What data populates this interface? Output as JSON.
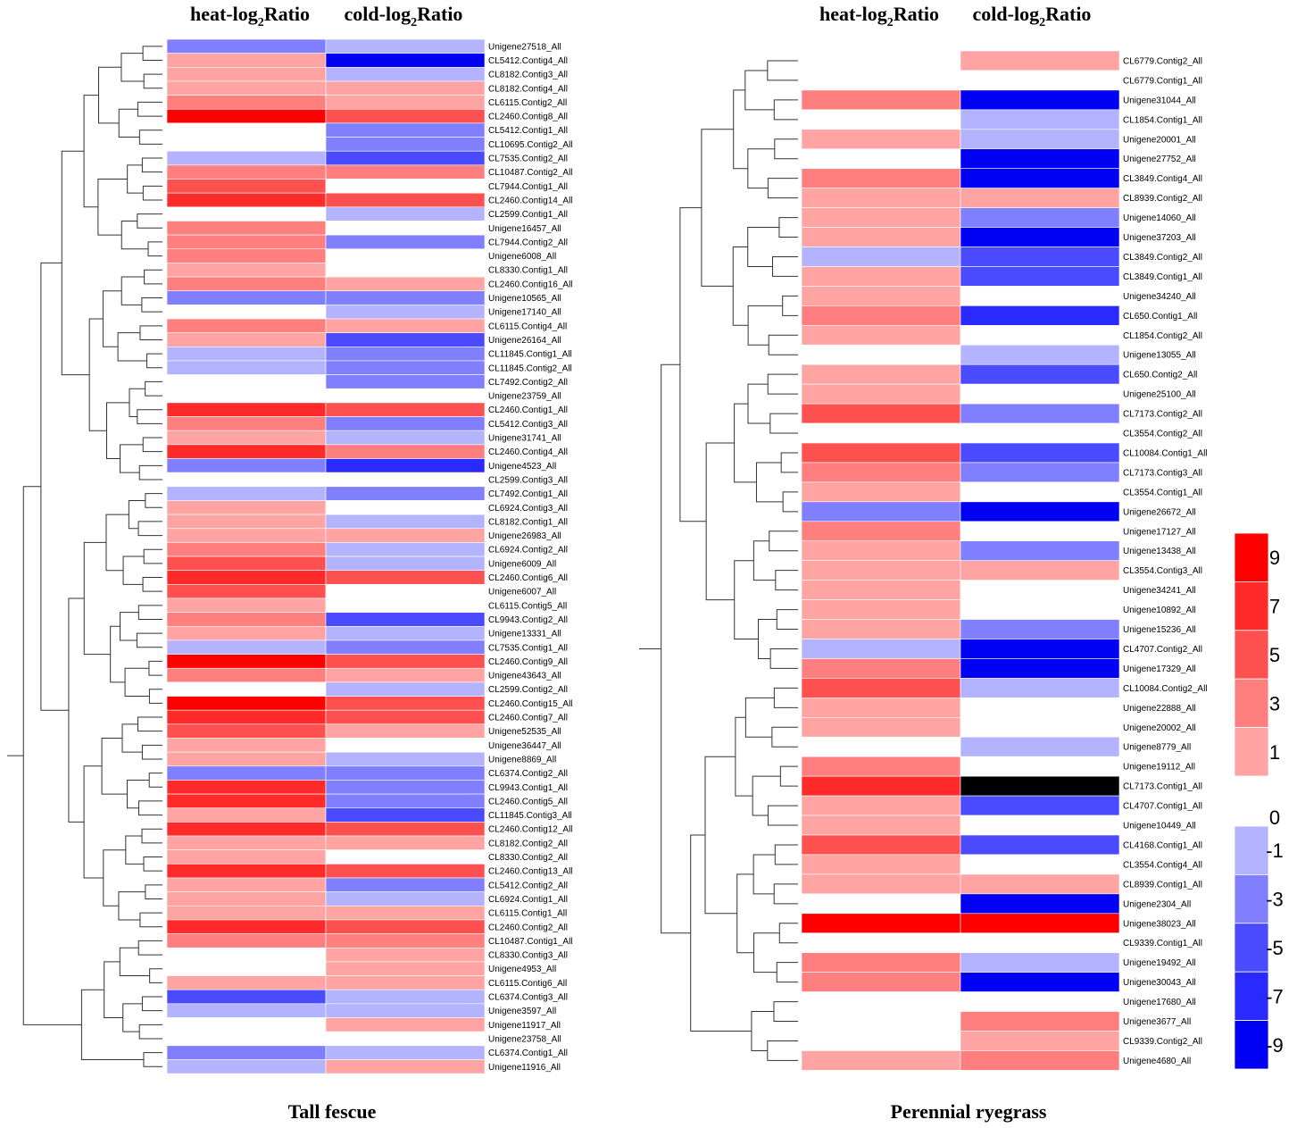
{
  "panels": [
    {
      "title": "Tall fescue",
      "col_headers": [
        {
          "main": "heat-log",
          "sub": "2",
          "tail": "Ratio"
        },
        {
          "main": "cold-log",
          "sub": "2",
          "tail": "Ratio"
        }
      ],
      "rows": [
        {
          "gene": "Unigene27518_All",
          "heat": -3,
          "cold": -1
        },
        {
          "gene": "CL5412.Contig4_All",
          "heat": 1,
          "cold": -9
        },
        {
          "gene": "CL8182.Contig3_All",
          "heat": 1,
          "cold": -1
        },
        {
          "gene": "CL8182.Contig4_All",
          "heat": 1,
          "cold": 1
        },
        {
          "gene": "CL6115.Contig2_All",
          "heat": 3,
          "cold": 1
        },
        {
          "gene": "CL2460.Contig8_All",
          "heat": 9,
          "cold": 5
        },
        {
          "gene": "CL5412.Contig1_All",
          "heat": null,
          "cold": -3
        },
        {
          "gene": "CL10695.Contig2_All",
          "heat": null,
          "cold": -3
        },
        {
          "gene": "CL7535.Contig2_All",
          "heat": -1,
          "cold": -5
        },
        {
          "gene": "CL10487.Contig2_All",
          "heat": 3,
          "cold": 3
        },
        {
          "gene": "CL7944.Contig1_All",
          "heat": 5,
          "cold": null
        },
        {
          "gene": "CL2460.Contig14_All",
          "heat": 7,
          "cold": 5
        },
        {
          "gene": "CL2599.Contig1_All",
          "heat": null,
          "cold": -1
        },
        {
          "gene": "Unigene16457_All",
          "heat": 3,
          "cold": null
        },
        {
          "gene": "CL7944.Contig2_All",
          "heat": 3,
          "cold": -3
        },
        {
          "gene": "Unigene6008_All",
          "heat": 3,
          "cold": null
        },
        {
          "gene": "CL8330.Contig1_All",
          "heat": 1,
          "cold": null
        },
        {
          "gene": "CL2460.Contig16_All",
          "heat": 3,
          "cold": 1
        },
        {
          "gene": "Unigene10565_All",
          "heat": -3,
          "cold": -3
        },
        {
          "gene": "Unigene17140_All",
          "heat": null,
          "cold": -1
        },
        {
          "gene": "CL6115.Contig4_All",
          "heat": 3,
          "cold": 1
        },
        {
          "gene": "Unigene26164_All",
          "heat": 1,
          "cold": -5
        },
        {
          "gene": "CL11845.Contig1_All",
          "heat": -1,
          "cold": -3
        },
        {
          "gene": "CL11845.Contig2_All",
          "heat": -1,
          "cold": -3
        },
        {
          "gene": "CL7492.Contig2_All",
          "heat": null,
          "cold": -3
        },
        {
          "gene": "Unigene23759_All",
          "heat": null,
          "cold": null
        },
        {
          "gene": "CL2460.Contig1_All",
          "heat": 7,
          "cold": 5
        },
        {
          "gene": "CL5412.Contig3_All",
          "heat": 3,
          "cold": -3
        },
        {
          "gene": "Unigene31741_All",
          "heat": 1,
          "cold": -1
        },
        {
          "gene": "CL2460.Contig4_All",
          "heat": 7,
          "cold": 3
        },
        {
          "gene": "Unigene4523_All",
          "heat": -3,
          "cold": -7
        },
        {
          "gene": "CL2599.Contig3_All",
          "heat": null,
          "cold": null
        },
        {
          "gene": "CL7492.Contig1_All",
          "heat": -1,
          "cold": -3
        },
        {
          "gene": "CL6924.Contig3_All",
          "heat": 1,
          "cold": null
        },
        {
          "gene": "CL8182.Contig1_All",
          "heat": 1,
          "cold": -1
        },
        {
          "gene": "Unigene26983_All",
          "heat": 1,
          "cold": 1
        },
        {
          "gene": "CL6924.Contig2_All",
          "heat": 3,
          "cold": -1
        },
        {
          "gene": "Unigene6009_All",
          "heat": 5,
          "cold": -1
        },
        {
          "gene": "CL2460.Contig6_All",
          "heat": 7,
          "cold": 5
        },
        {
          "gene": "Unigene6007_All",
          "heat": 5,
          "cold": null
        },
        {
          "gene": "CL6115.Contig5_All",
          "heat": 1,
          "cold": null
        },
        {
          "gene": "CL9943.Contig2_All",
          "heat": 3,
          "cold": -5
        },
        {
          "gene": "Unigene13331_All",
          "heat": 1,
          "cold": -1
        },
        {
          "gene": "CL7535.Contig1_All",
          "heat": -1,
          "cold": -3
        },
        {
          "gene": "CL2460.Contig9_All",
          "heat": 9,
          "cold": 5
        },
        {
          "gene": "Unigene43643_All",
          "heat": 3,
          "cold": 1
        },
        {
          "gene": "CL2599.Contig2_All",
          "heat": null,
          "cold": -1
        },
        {
          "gene": "CL2460.Contig15_All",
          "heat": 9,
          "cold": 5
        },
        {
          "gene": "CL2460.Contig7_All",
          "heat": 7,
          "cold": 5
        },
        {
          "gene": "Unigene52535_All",
          "heat": 5,
          "cold": 1
        },
        {
          "gene": "Unigene36447_All",
          "heat": 1,
          "cold": null
        },
        {
          "gene": "Unigene8869_All",
          "heat": 1,
          "cold": -1
        },
        {
          "gene": "CL6374.Contig2_All",
          "heat": -3,
          "cold": -3
        },
        {
          "gene": "CL9943.Contig1_All",
          "heat": 7,
          "cold": -3
        },
        {
          "gene": "CL2460.Contig5_All",
          "heat": 7,
          "cold": -3
        },
        {
          "gene": "CL11845.Contig3_All",
          "heat": 1,
          "cold": -5
        },
        {
          "gene": "CL2460.Contig12_All",
          "heat": 7,
          "cold": 5
        },
        {
          "gene": "CL8182.Contig2_All",
          "heat": 1,
          "cold": 1
        },
        {
          "gene": "CL8330.Contig2_All",
          "heat": 1,
          "cold": null
        },
        {
          "gene": "CL2460.Contig13_All",
          "heat": 7,
          "cold": 5
        },
        {
          "gene": "CL5412.Contig2_All",
          "heat": 1,
          "cold": -3
        },
        {
          "gene": "CL6924.Contig1_All",
          "heat": 1,
          "cold": -1
        },
        {
          "gene": "CL6115.Contig1_All",
          "heat": 1,
          "cold": 1
        },
        {
          "gene": "CL2460.Contig2_All",
          "heat": 7,
          "cold": 5
        },
        {
          "gene": "CL10487.Contig1_All",
          "heat": 3,
          "cold": 3
        },
        {
          "gene": "CL8330.Contig3_All",
          "heat": null,
          "cold": 1
        },
        {
          "gene": "Unigene4953_All",
          "heat": null,
          "cold": 1
        },
        {
          "gene": "CL6115.Contig6_All",
          "heat": 1,
          "cold": 1
        },
        {
          "gene": "CL6374.Contig3_All",
          "heat": -5,
          "cold": -1
        },
        {
          "gene": "Unigene3597_All",
          "heat": -1,
          "cold": -1
        },
        {
          "gene": "Unigene11917_All",
          "heat": null,
          "cold": 1
        },
        {
          "gene": "Unigene23758_All",
          "heat": null,
          "cold": null
        },
        {
          "gene": "CL6374.Contig1_All",
          "heat": -3,
          "cold": -1
        },
        {
          "gene": "Unigene11916_All",
          "heat": -1,
          "cold": 1
        }
      ]
    },
    {
      "title": "Perennial ryegrass",
      "col_headers": [
        {
          "main": "heat-log",
          "sub": "2",
          "tail": "Ratio"
        },
        {
          "main": "cold-log",
          "sub": "2",
          "tail": "Ratio"
        }
      ],
      "rows": [
        {
          "gene": "CL6779.Contig2_All",
          "heat": null,
          "cold": 1
        },
        {
          "gene": "CL6779.Contig1_All",
          "heat": null,
          "cold": null
        },
        {
          "gene": "Unigene31044_All",
          "heat": 3,
          "cold": -9
        },
        {
          "gene": "CL1854.Contig1_All",
          "heat": null,
          "cold": -1
        },
        {
          "gene": "Unigene20001_All",
          "heat": 1,
          "cold": -1
        },
        {
          "gene": "Unigene27752_All",
          "heat": null,
          "cold": -9
        },
        {
          "gene": "CL3849.Contig4_All",
          "heat": 3,
          "cold": -9
        },
        {
          "gene": "CL8939.Contig2_All",
          "heat": 1,
          "cold": 1
        },
        {
          "gene": "Unigene14060_All",
          "heat": 1,
          "cold": -3
        },
        {
          "gene": "Unigene37203_All",
          "heat": 1,
          "cold": -9
        },
        {
          "gene": "CL3849.Contig2_All",
          "heat": -1,
          "cold": -5
        },
        {
          "gene": "CL3849.Contig1_All",
          "heat": 1,
          "cold": -5
        },
        {
          "gene": "Unigene34240_All",
          "heat": 1,
          "cold": null
        },
        {
          "gene": "CL650.Contig1_All",
          "heat": 3,
          "cold": -7
        },
        {
          "gene": "CL1854.Contig2_All",
          "heat": 1,
          "cold": null
        },
        {
          "gene": "Unigene13055_All",
          "heat": null,
          "cold": -1
        },
        {
          "gene": "CL650.Contig2_All",
          "heat": 1,
          "cold": -5
        },
        {
          "gene": "Unigene25100_All",
          "heat": 1,
          "cold": null
        },
        {
          "gene": "CL7173.Contig2_All",
          "heat": 5,
          "cold": -3
        },
        {
          "gene": "CL3554.Contig2_All",
          "heat": null,
          "cold": null
        },
        {
          "gene": "CL10084.Contig1_All",
          "heat": 5,
          "cold": -5
        },
        {
          "gene": "CL7173.Contig3_All",
          "heat": 3,
          "cold": -3
        },
        {
          "gene": "CL3554.Contig1_All",
          "heat": 1,
          "cold": null
        },
        {
          "gene": "Unigene26672_All",
          "heat": -3,
          "cold": -9
        },
        {
          "gene": "Unigene17127_All",
          "heat": 3,
          "cold": null
        },
        {
          "gene": "Unigene13438_All",
          "heat": 1,
          "cold": -3
        },
        {
          "gene": "CL3554.Contig3_All",
          "heat": 1,
          "cold": 1
        },
        {
          "gene": "Unigene34241_All",
          "heat": 1,
          "cold": null
        },
        {
          "gene": "Unigene10892_All",
          "heat": 1,
          "cold": null
        },
        {
          "gene": "Unigene15236_All",
          "heat": 1,
          "cold": -3
        },
        {
          "gene": "CL4707.Contig2_All",
          "heat": -1,
          "cold": -9
        },
        {
          "gene": "Unigene17329_All",
          "heat": 3,
          "cold": -9
        },
        {
          "gene": "CL10084.Contig2_All",
          "heat": 5,
          "cold": -1
        },
        {
          "gene": "Unigene22888_All",
          "heat": 1,
          "cold": null
        },
        {
          "gene": "Unigene20002_All",
          "heat": 1,
          "cold": null
        },
        {
          "gene": "Unigene8779_All",
          "heat": null,
          "cold": -1
        },
        {
          "gene": "Unigene19112_All",
          "heat": 3,
          "cold": null
        },
        {
          "gene": "CL7173.Contig1_All",
          "heat": 7,
          "cold": "black"
        },
        {
          "gene": "CL4707.Contig1_All",
          "heat": 1,
          "cold": -5
        },
        {
          "gene": "Unigene10449_All",
          "heat": 1,
          "cold": null
        },
        {
          "gene": "CL4168.Contig1_All",
          "heat": 5,
          "cold": -5
        },
        {
          "gene": "CL3554.Contig4_All",
          "heat": 1,
          "cold": null
        },
        {
          "gene": "CL8939.Contig1_All",
          "heat": 1,
          "cold": 1
        },
        {
          "gene": "Unigene2304_All",
          "heat": null,
          "cold": -9
        },
        {
          "gene": "Unigene38023_All",
          "heat": 9,
          "cold": 9
        },
        {
          "gene": "CL9339.Contig1_All",
          "heat": null,
          "cold": null
        },
        {
          "gene": "Unigene19492_All",
          "heat": 3,
          "cold": -1
        },
        {
          "gene": "Unigene30043_All",
          "heat": 3,
          "cold": -9
        },
        {
          "gene": "Unigene17680_All",
          "heat": null,
          "cold": null
        },
        {
          "gene": "Unigene3677_All",
          "heat": null,
          "cold": 3
        },
        {
          "gene": "CL9339.Contig2_All",
          "heat": null,
          "cold": 1
        },
        {
          "gene": "Unigene4680_All",
          "heat": 1,
          "cold": 3
        }
      ]
    }
  ],
  "legend": {
    "positive": [
      {
        "label": "9",
        "level": 9,
        "color": "#ff0000"
      },
      {
        "label": "7",
        "level": 7,
        "color": "#ff2a2a"
      },
      {
        "label": "5",
        "level": 5,
        "color": "#ff5050"
      },
      {
        "label": "3",
        "level": 3,
        "color": "#ff7f7f"
      },
      {
        "label": "1",
        "level": 1,
        "color": "#ffa3a3"
      }
    ],
    "negative": [
      {
        "label": "0",
        "level": 0
      },
      {
        "label": "-1",
        "level": -1,
        "color": "#b3b3ff"
      },
      {
        "label": "-3",
        "level": -3,
        "color": "#7f7fff"
      },
      {
        "label": "-5",
        "level": -5,
        "color": "#4a4aff"
      },
      {
        "label": "-7",
        "level": -7,
        "color": "#2a2aff"
      },
      {
        "label": "-9",
        "level": -9,
        "color": "#0000f5"
      }
    ]
  },
  "colors": {
    "1": "#ffa3a3",
    "3": "#ff7f7f",
    "5": "#ff5050",
    "7": "#ff2a2a",
    "9": "#ff0000",
    "-1": "#b3b3ff",
    "-3": "#7f7fff",
    "-5": "#4a4aff",
    "-7": "#2a2aff",
    "-9": "#0000f5",
    "black": "#000000",
    "empty": "#ffffff"
  },
  "chart_data": [
    {
      "type": "heatmap",
      "title": "Tall fescue",
      "columns": [
        "heat-log2Ratio",
        "cold-log2Ratio"
      ],
      "color_scale": [
        -9,
        -7,
        -5,
        -3,
        -1,
        0,
        1,
        3,
        5,
        7,
        9
      ],
      "note": "rows with dendrogram clustering; blank cells = no value; values are approximate color bins"
    },
    {
      "type": "heatmap",
      "title": "Perennial ryegrass",
      "columns": [
        "heat-log2Ratio",
        "cold-log2Ratio"
      ],
      "color_scale": [
        -9,
        -7,
        -5,
        -3,
        -1,
        0,
        1,
        3,
        5,
        7,
        9
      ],
      "note": "rows with dendrogram clustering; blank cells = no value; values are approximate color bins"
    }
  ]
}
